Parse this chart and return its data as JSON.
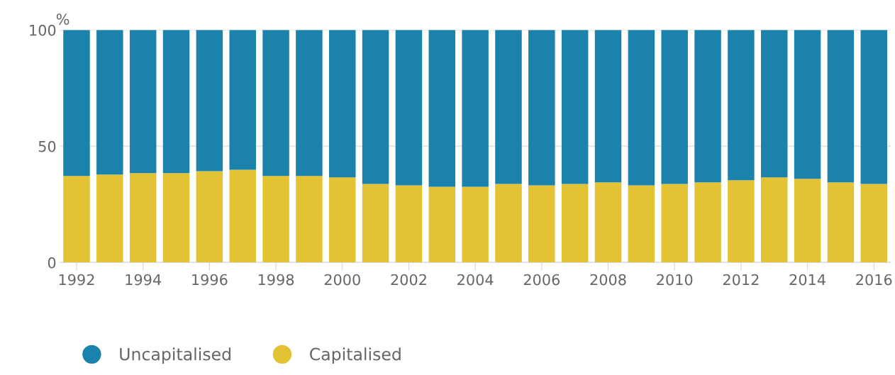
{
  "chart_data": {
    "type": "bar",
    "stacked": true,
    "ylabel": "%",
    "categories": [
      "1992",
      null,
      "1994",
      null,
      "1996",
      null,
      "1998",
      null,
      "2000",
      null,
      "2002",
      null,
      "2004",
      null,
      "2006",
      null,
      "2008",
      null,
      "2010",
      null,
      "2012",
      null,
      "2014",
      null,
      "2016"
    ],
    "series": [
      {
        "name": "Capitalised",
        "color": "#e3c233",
        "values": [
          37.2,
          37.8,
          38.4,
          38.4,
          39.3,
          39.9,
          37.2,
          37.2,
          36.6,
          33.8,
          33.2,
          32.6,
          32.6,
          33.8,
          33.2,
          33.8,
          34.5,
          33.2,
          33.8,
          34.5,
          35.4,
          36.6,
          36.0,
          34.5,
          33.8
        ]
      },
      {
        "name": "Uncapitalised",
        "color": "#1a82ab",
        "values": [
          62.8,
          62.2,
          61.6,
          61.6,
          60.7,
          60.1,
          62.8,
          62.8,
          63.4,
          66.2,
          66.8,
          67.4,
          67.4,
          66.2,
          66.8,
          66.2,
          65.5,
          66.8,
          66.2,
          65.5,
          64.6,
          63.4,
          64.0,
          65.5,
          66.2
        ]
      }
    ],
    "ylim": [
      0,
      100
    ],
    "yticks": [
      0,
      50,
      100
    ],
    "grid": "y",
    "legend": "bottom"
  }
}
